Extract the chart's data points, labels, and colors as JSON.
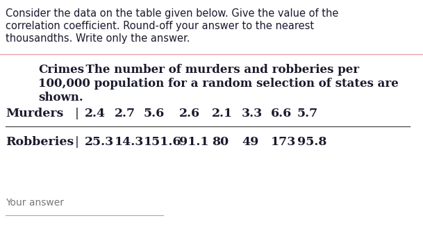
{
  "intro_text_line1": "Consider the data on the table given below. Give the value of the",
  "intro_text_line2": "correlation coefficient. Round-off your answer to the nearest",
  "intro_text_line3": "thousandths. Write only the answer.",
  "separator_color": "#f0a0b0",
  "title_line1_bold": "Crimes",
  "title_line1_rest": "  The number of murders and robberies per",
  "title_line2": "100,000 population for a random selection of states are",
  "title_line3": "shown.",
  "row1_label": "Murders",
  "row2_label": "Robberies",
  "murders_values": [
    "2.4",
    "2.7",
    "5.6",
    "2.6",
    "2.1",
    "3.3",
    "6.6",
    "5.7"
  ],
  "robberies_values": [
    "25.3",
    "14.3",
    "151.6",
    "91.1",
    "80",
    "49",
    "173",
    "95.8"
  ],
  "footer_text": "Your answer",
  "bg_color": "#ffffff",
  "text_color": "#1a1a2e",
  "intro_font_size": 10.5,
  "table_title_font_size": 12.0,
  "table_data_font_size": 12.5,
  "footer_font_size": 10.0
}
